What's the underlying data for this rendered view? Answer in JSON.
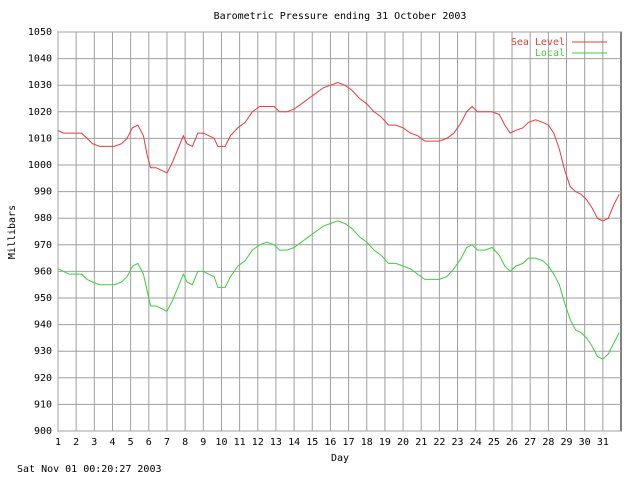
{
  "chart_data": {
    "type": "line",
    "title": "Barometric Pressure ending 31 October 2003",
    "xlabel": "Day",
    "ylabel": "Millibars",
    "xlim": [
      1,
      32
    ],
    "ylim": [
      900,
      1050
    ],
    "x_ticks": [
      "1",
      "2",
      "3",
      "4",
      "5",
      "6",
      "7",
      "8",
      "9",
      "10",
      "11",
      "12",
      "13",
      "14",
      "15",
      "16",
      "17",
      "18",
      "19",
      "20",
      "21",
      "22",
      "23",
      "24",
      "25",
      "26",
      "27",
      "28",
      "29",
      "30",
      "31"
    ],
    "y_ticks": [
      900,
      910,
      920,
      930,
      940,
      950,
      960,
      970,
      980,
      990,
      1000,
      1010,
      1020,
      1030,
      1040,
      1050
    ],
    "grid": true,
    "legend_position": "top-right",
    "series": [
      {
        "name": "Sea Level",
        "color": "#e83c3c",
        "points": [
          [
            1.0,
            1013
          ],
          [
            1.3,
            1012
          ],
          [
            1.6,
            1012
          ],
          [
            2.0,
            1012
          ],
          [
            2.3,
            1012
          ],
          [
            2.6,
            1010
          ],
          [
            2.9,
            1008
          ],
          [
            3.3,
            1007
          ],
          [
            3.7,
            1007
          ],
          [
            4.1,
            1007
          ],
          [
            4.5,
            1008
          ],
          [
            4.8,
            1010
          ],
          [
            5.1,
            1014
          ],
          [
            5.4,
            1015
          ],
          [
            5.7,
            1011
          ],
          [
            5.9,
            1004
          ],
          [
            6.1,
            999
          ],
          [
            6.4,
            999
          ],
          [
            6.7,
            998
          ],
          [
            7.0,
            997
          ],
          [
            7.3,
            1001
          ],
          [
            7.6,
            1006
          ],
          [
            7.9,
            1011
          ],
          [
            8.1,
            1008
          ],
          [
            8.4,
            1007
          ],
          [
            8.7,
            1012
          ],
          [
            9.0,
            1012
          ],
          [
            9.3,
            1011
          ],
          [
            9.6,
            1010
          ],
          [
            9.8,
            1007
          ],
          [
            10.2,
            1007
          ],
          [
            10.5,
            1011
          ],
          [
            10.9,
            1014
          ],
          [
            11.3,
            1016
          ],
          [
            11.7,
            1020
          ],
          [
            12.1,
            1022
          ],
          [
            12.5,
            1022
          ],
          [
            12.9,
            1022
          ],
          [
            13.2,
            1020
          ],
          [
            13.6,
            1020
          ],
          [
            14.0,
            1021
          ],
          [
            14.4,
            1023
          ],
          [
            14.8,
            1025
          ],
          [
            15.2,
            1027
          ],
          [
            15.6,
            1029
          ],
          [
            16.0,
            1030
          ],
          [
            16.4,
            1031
          ],
          [
            16.8,
            1030
          ],
          [
            17.2,
            1028
          ],
          [
            17.6,
            1025
          ],
          [
            18.0,
            1023
          ],
          [
            18.4,
            1020
          ],
          [
            18.8,
            1018
          ],
          [
            19.2,
            1015
          ],
          [
            19.6,
            1015
          ],
          [
            20.0,
            1014
          ],
          [
            20.4,
            1012
          ],
          [
            20.8,
            1011
          ],
          [
            21.2,
            1009
          ],
          [
            21.6,
            1009
          ],
          [
            22.0,
            1009
          ],
          [
            22.4,
            1010
          ],
          [
            22.8,
            1012
          ],
          [
            23.2,
            1016
          ],
          [
            23.5,
            1020
          ],
          [
            23.8,
            1022
          ],
          [
            24.1,
            1020
          ],
          [
            24.5,
            1020
          ],
          [
            24.9,
            1020
          ],
          [
            25.3,
            1019
          ],
          [
            25.6,
            1015
          ],
          [
            25.9,
            1012
          ],
          [
            26.2,
            1013
          ],
          [
            26.6,
            1014
          ],
          [
            26.9,
            1016
          ],
          [
            27.3,
            1017
          ],
          [
            27.7,
            1016
          ],
          [
            28.0,
            1015
          ],
          [
            28.3,
            1012
          ],
          [
            28.6,
            1006
          ],
          [
            28.9,
            998
          ],
          [
            29.2,
            992
          ],
          [
            29.5,
            990
          ],
          [
            29.8,
            989
          ],
          [
            30.1,
            987
          ],
          [
            30.4,
            984
          ],
          [
            30.7,
            980
          ],
          [
            31.0,
            979
          ],
          [
            31.3,
            980
          ],
          [
            31.6,
            985
          ],
          [
            31.9,
            989
          ]
        ]
      },
      {
        "name": "Local",
        "color": "#3cd03c",
        "points": [
          [
            1.0,
            961
          ],
          [
            1.3,
            960
          ],
          [
            1.6,
            959
          ],
          [
            2.0,
            959
          ],
          [
            2.3,
            959
          ],
          [
            2.6,
            957
          ],
          [
            2.9,
            956
          ],
          [
            3.3,
            955
          ],
          [
            3.7,
            955
          ],
          [
            4.1,
            955
          ],
          [
            4.5,
            956
          ],
          [
            4.8,
            958
          ],
          [
            5.1,
            962
          ],
          [
            5.4,
            963
          ],
          [
            5.7,
            959
          ],
          [
            5.9,
            953
          ],
          [
            6.1,
            947
          ],
          [
            6.4,
            947
          ],
          [
            6.7,
            946
          ],
          [
            7.0,
            945
          ],
          [
            7.3,
            949
          ],
          [
            7.6,
            954
          ],
          [
            7.9,
            959
          ],
          [
            8.1,
            956
          ],
          [
            8.4,
            955
          ],
          [
            8.7,
            960
          ],
          [
            9.0,
            960
          ],
          [
            9.3,
            959
          ],
          [
            9.6,
            958
          ],
          [
            9.8,
            954
          ],
          [
            10.2,
            954
          ],
          [
            10.5,
            958
          ],
          [
            10.9,
            962
          ],
          [
            11.3,
            964
          ],
          [
            11.7,
            968
          ],
          [
            12.1,
            970
          ],
          [
            12.5,
            971
          ],
          [
            12.9,
            970
          ],
          [
            13.2,
            968
          ],
          [
            13.6,
            968
          ],
          [
            14.0,
            969
          ],
          [
            14.4,
            971
          ],
          [
            14.8,
            973
          ],
          [
            15.2,
            975
          ],
          [
            15.6,
            977
          ],
          [
            16.0,
            978
          ],
          [
            16.4,
            979
          ],
          [
            16.8,
            978
          ],
          [
            17.2,
            976
          ],
          [
            17.6,
            973
          ],
          [
            18.0,
            971
          ],
          [
            18.4,
            968
          ],
          [
            18.8,
            966
          ],
          [
            19.2,
            963
          ],
          [
            19.6,
            963
          ],
          [
            20.0,
            962
          ],
          [
            20.4,
            961
          ],
          [
            20.8,
            959
          ],
          [
            21.2,
            957
          ],
          [
            21.6,
            957
          ],
          [
            22.0,
            957
          ],
          [
            22.4,
            958
          ],
          [
            22.8,
            961
          ],
          [
            23.2,
            965
          ],
          [
            23.5,
            969
          ],
          [
            23.8,
            970
          ],
          [
            24.1,
            968
          ],
          [
            24.5,
            968
          ],
          [
            24.9,
            969
          ],
          [
            25.3,
            966
          ],
          [
            25.6,
            962
          ],
          [
            25.9,
            960
          ],
          [
            26.2,
            962
          ],
          [
            26.6,
            963
          ],
          [
            26.9,
            965
          ],
          [
            27.3,
            965
          ],
          [
            27.7,
            964
          ],
          [
            28.0,
            962
          ],
          [
            28.3,
            959
          ],
          [
            28.6,
            955
          ],
          [
            28.9,
            948
          ],
          [
            29.2,
            942
          ],
          [
            29.5,
            938
          ],
          [
            29.8,
            937
          ],
          [
            30.1,
            935
          ],
          [
            30.4,
            932
          ],
          [
            30.7,
            928
          ],
          [
            31.0,
            927
          ],
          [
            31.3,
            929
          ],
          [
            31.6,
            933
          ],
          [
            31.9,
            937
          ]
        ]
      }
    ]
  },
  "footer": {
    "timestamp": "Sat Nov 01 00:20:27 2003"
  }
}
